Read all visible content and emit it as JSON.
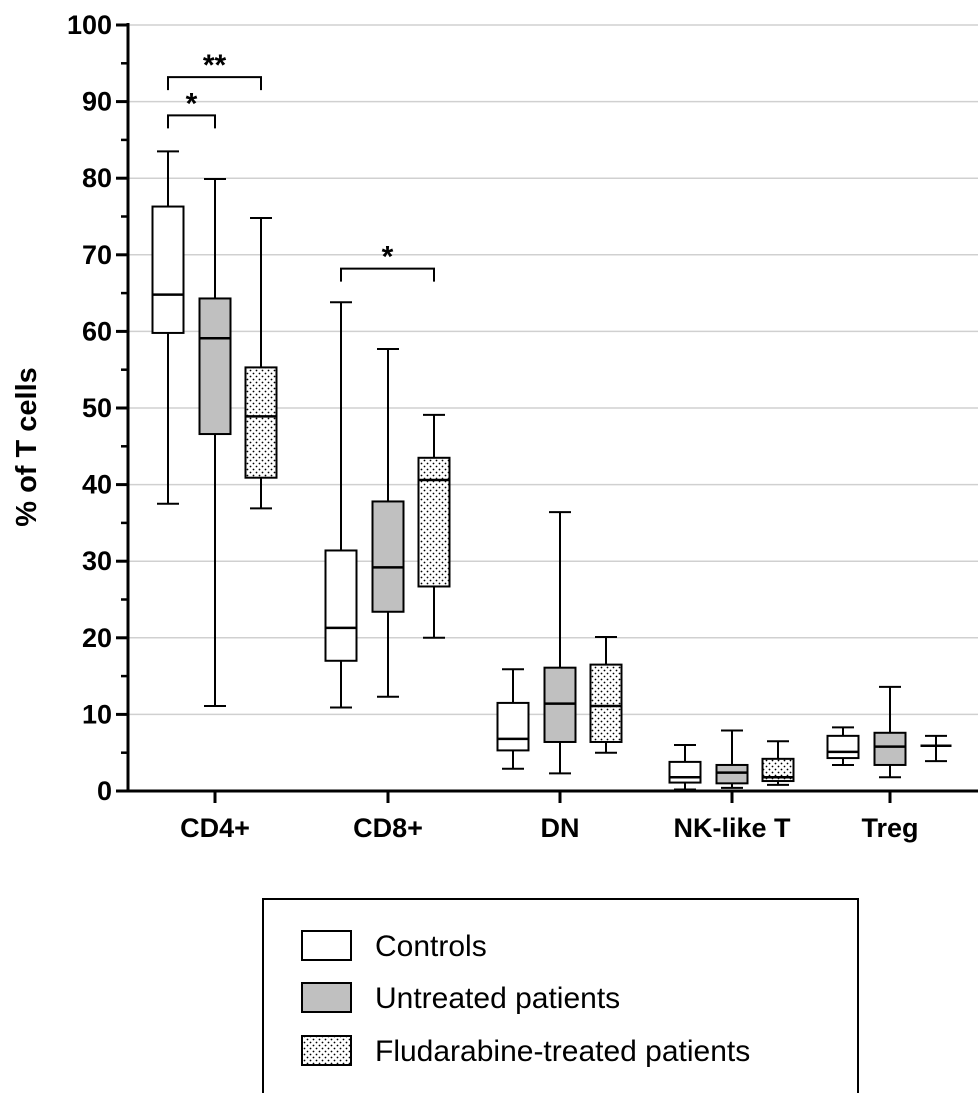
{
  "chart_data": {
    "type": "box",
    "title": "",
    "xlabel": "",
    "ylabel": "% of T cells",
    "ylim": [
      0,
      100
    ],
    "yticks": [
      0,
      10,
      20,
      30,
      40,
      50,
      60,
      70,
      80,
      90,
      100
    ],
    "grid": true,
    "categories": [
      "CD4+",
      "CD8+",
      "DN",
      "NK-like T",
      "Treg"
    ],
    "legend_position": "bottom",
    "series": [
      {
        "name": "Controls",
        "fill": "#ffffff",
        "pattern": "none",
        "boxes": [
          {
            "min": 37.5,
            "q1": 59.8,
            "median": 64.8,
            "q3": 76.3,
            "max": 83.5
          },
          {
            "min": 10.9,
            "q1": 17.0,
            "median": 21.3,
            "q3": 31.4,
            "max": 63.8
          },
          {
            "min": 2.9,
            "q1": 5.3,
            "median": 6.8,
            "q3": 11.5,
            "max": 15.9
          },
          {
            "min": 0.2,
            "q1": 1.1,
            "median": 1.8,
            "q3": 3.8,
            "max": 6.0
          },
          {
            "min": 3.4,
            "q1": 4.3,
            "median": 5.1,
            "q3": 7.2,
            "max": 8.3
          }
        ]
      },
      {
        "name": "Untreated patients",
        "fill": "#c0c0c0",
        "pattern": "none",
        "boxes": [
          {
            "min": 11.1,
            "q1": 46.6,
            "median": 59.1,
            "q3": 64.3,
            "max": 79.9
          },
          {
            "min": 12.3,
            "q1": 23.4,
            "median": 29.2,
            "q3": 37.8,
            "max": 57.7
          },
          {
            "min": 2.3,
            "q1": 6.4,
            "median": 11.4,
            "q3": 16.1,
            "max": 36.4
          },
          {
            "min": 0.4,
            "q1": 1.0,
            "median": 2.4,
            "q3": 3.4,
            "max": 7.9
          },
          {
            "min": 1.8,
            "q1": 3.4,
            "median": 5.8,
            "q3": 7.6,
            "max": 13.6
          }
        ]
      },
      {
        "name": "Fludarabine-treated patients",
        "fill": "#ffffff",
        "pattern": "dots",
        "boxes": [
          {
            "min": 36.9,
            "q1": 40.9,
            "median": 48.9,
            "q3": 55.3,
            "max": 74.8
          },
          {
            "min": 20.0,
            "q1": 26.7,
            "median": 40.6,
            "q3": 43.5,
            "max": 49.1
          },
          {
            "min": 5.0,
            "q1": 6.4,
            "median": 11.1,
            "q3": 16.5,
            "max": 20.1
          },
          {
            "min": 0.8,
            "q1": 1.3,
            "median": 1.8,
            "q3": 4.2,
            "max": 6.5
          },
          {
            "min": 3.9,
            "q1": 5.9,
            "median": 5.9,
            "q3": 5.9,
            "max": 7.2
          }
        ]
      }
    ],
    "significance": [
      {
        "category": "CD4+",
        "from_series": 0,
        "to_series": 2,
        "label": "**",
        "y": 93.2
      },
      {
        "category": "CD4+",
        "from_series": 0,
        "to_series": 1,
        "label": "*",
        "y": 88.2
      },
      {
        "category": "CD8+",
        "from_series": 0,
        "to_series": 2,
        "label": "*",
        "y": 68.2
      }
    ]
  }
}
